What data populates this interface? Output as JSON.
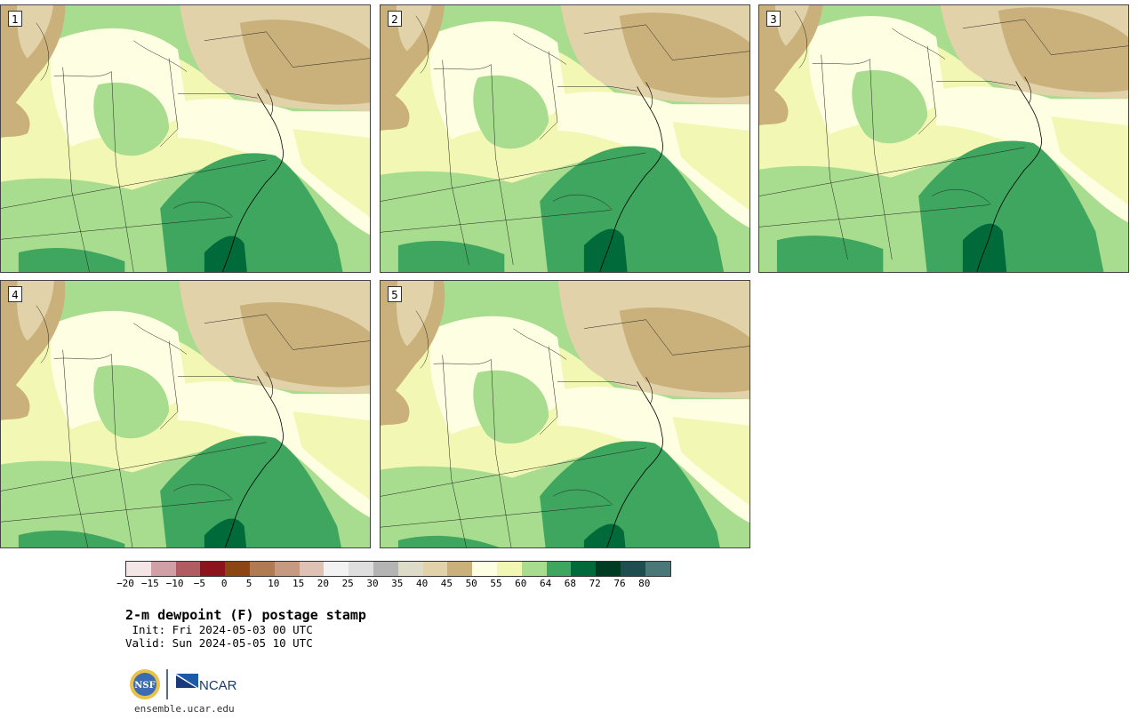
{
  "panels": [
    {
      "label": "1"
    },
    {
      "label": "2"
    },
    {
      "label": "3"
    },
    {
      "label": "4"
    },
    {
      "label": "5"
    }
  ],
  "colorbar": {
    "colors": [
      "#f4e6e6",
      "#d0a0a6",
      "#b05c62",
      "#8c141c",
      "#8c4614",
      "#b07a52",
      "#c69a80",
      "#e0c2b4",
      "#f2f2f2",
      "#dedede",
      "#b4b4b4",
      "#dcdcc8",
      "#e2d2aa",
      "#cab07a",
      "#fefee2",
      "#f2f8b4",
      "#a8dc8e",
      "#3ea65e",
      "#006a3a",
      "#003c24",
      "#1e4e50",
      "#4a7878"
    ],
    "ticks": [
      "−20",
      "−15",
      "−10",
      "−5",
      "0",
      "5",
      "10",
      "15",
      "20",
      "25",
      "30",
      "35",
      "40",
      "45",
      "50",
      "55",
      "60",
      "64",
      "68",
      "72",
      "76",
      "80"
    ]
  },
  "title": "2-m dewpoint (F) postage stamp",
  "init": " Init: Fri 2024-05-03 00 UTC",
  "valid": "Valid: Sun 2024-05-05 10 UTC",
  "logos": {
    "nsf": "NSF",
    "ncar": "NCAR"
  },
  "url": "ensemble.ucar.edu"
}
